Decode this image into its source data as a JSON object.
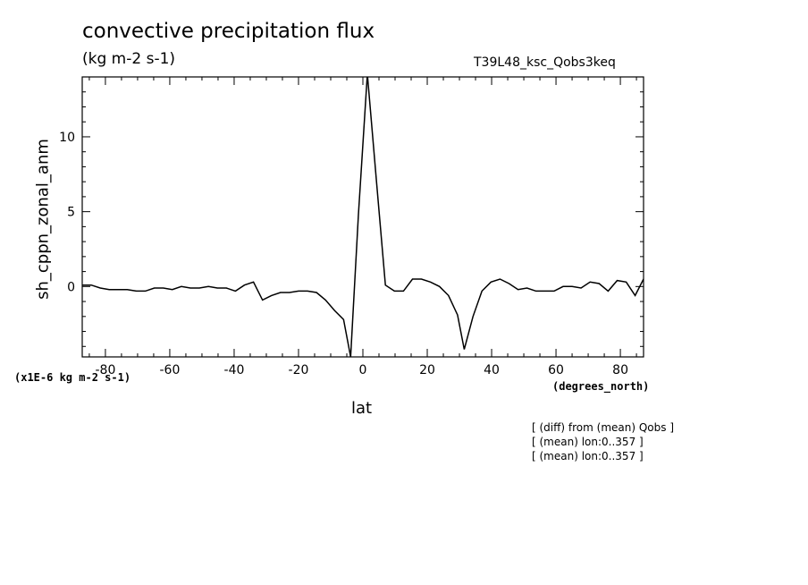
{
  "title": "convective precipitation flux",
  "subtitle": "(kg m-2 s-1)",
  "run_label": "T39L48_ksc_Qobs3keq",
  "notes": [
    "[ (diff) from (mean) Qobs ]",
    "[ (mean) lon:0..357 ]",
    "[ (mean) lon:0..357 ]"
  ],
  "chart_data": {
    "type": "line",
    "title": "convective precipitation flux",
    "subtitle": "(kg m-2 s-1)",
    "xlabel": "lat",
    "ylabel": "sh_cppn_zonal_anm",
    "x_units": "(degrees_north)",
    "y_units": "(x1E-6 kg m-2 s-1)",
    "xlim": [
      -87.2,
      87.2
    ],
    "ylim": [
      -4.7,
      14
    ],
    "x_ticks": [
      -80,
      -60,
      -40,
      -20,
      0,
      20,
      40,
      60,
      80
    ],
    "x_tick_labels": [
      "-80",
      "-60",
      "-40",
      "-20",
      "0",
      "20",
      "40",
      "60",
      "80"
    ],
    "y_ticks": [
      0,
      5,
      10
    ],
    "y_tick_labels": [
      "0",
      "5",
      "10"
    ],
    "grid": false,
    "series": [
      {
        "color": "#000000",
        "x": [
          -87.2,
          -84.4,
          -81.6,
          -78.8,
          -76.0,
          -73.2,
          -70.4,
          -67.6,
          -64.8,
          -62.0,
          -59.2,
          -56.4,
          -53.6,
          -50.8,
          -48.0,
          -45.2,
          -42.4,
          -39.6,
          -36.8,
          -34.0,
          -31.2,
          -28.4,
          -25.6,
          -22.8,
          -20.0,
          -17.2,
          -14.4,
          -11.6,
          -8.8,
          -6.0,
          -3.8,
          -1.4,
          1.4,
          4.2,
          7.0,
          9.8,
          12.6,
          15.4,
          18.2,
          21.0,
          23.8,
          26.6,
          29.4,
          31.5,
          34.2,
          37.0,
          39.8,
          42.6,
          45.4,
          48.2,
          51.0,
          53.8,
          56.6,
          59.4,
          62.2,
          65.0,
          67.8,
          70.6,
          73.4,
          76.2,
          79.0,
          81.8,
          84.6,
          87.2
        ],
        "values": [
          0.1,
          0.1,
          -0.1,
          -0.2,
          -0.2,
          -0.2,
          -0.3,
          -0.3,
          -0.1,
          -0.1,
          -0.2,
          0.0,
          -0.1,
          -0.1,
          0.0,
          -0.1,
          -0.1,
          -0.3,
          0.1,
          0.3,
          -0.9,
          -0.6,
          -0.4,
          -0.4,
          -0.3,
          -0.3,
          -0.4,
          -0.9,
          -1.6,
          -2.2,
          -4.7,
          4.8,
          14.2,
          7.1,
          0.1,
          -0.3,
          -0.3,
          0.5,
          0.5,
          0.3,
          0.0,
          -0.6,
          -1.9,
          -4.2,
          -2.0,
          -0.3,
          0.3,
          0.5,
          0.2,
          -0.2,
          -0.1,
          -0.3,
          -0.3,
          -0.3,
          0.0,
          0.0,
          -0.1,
          0.3,
          0.2,
          -0.3,
          0.4,
          0.3,
          -0.6,
          0.5
        ]
      }
    ]
  }
}
